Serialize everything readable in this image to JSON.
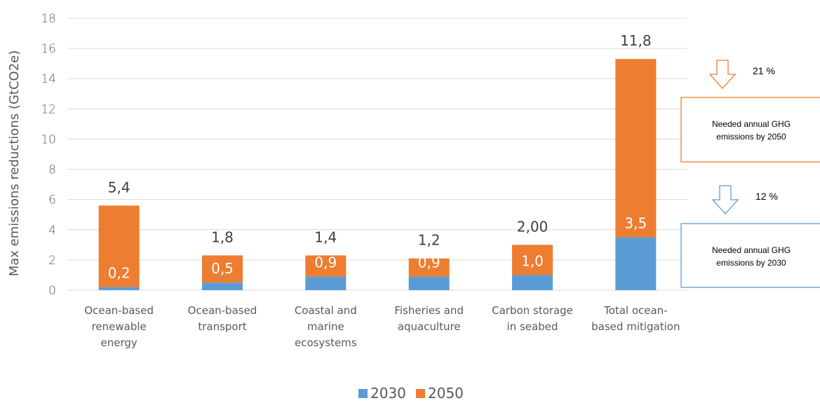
{
  "chart_data": {
    "type": "bar",
    "stacked": true,
    "ylabel": "Max emissions reductions (GtCO2e)",
    "ylim": [
      0,
      18
    ],
    "yticks": [
      0,
      2,
      4,
      6,
      8,
      10,
      12,
      14,
      16,
      18
    ],
    "grid": true,
    "legend_position": "bottom",
    "categories": [
      [
        "Ocean-based",
        "renewable",
        "energy"
      ],
      [
        "Ocean-based",
        "transport"
      ],
      [
        "Coastal and",
        "marine",
        "ecosystems"
      ],
      [
        "Fisheries and",
        "aquaculture"
      ],
      [
        "Carbon storage",
        "in seabed"
      ],
      [
        "Total ocean-",
        "based mitigation"
      ]
    ],
    "series": [
      {
        "name": "2030",
        "color": "#5B9BD5",
        "values": [
          0.2,
          0.5,
          0.9,
          0.9,
          1.0,
          3.5
        ],
        "labels": [
          "0,2",
          "0,5",
          "0,9",
          "0,9",
          "1,0",
          "3,5"
        ]
      },
      {
        "name": "2050",
        "color": "#ED7D31",
        "values": [
          5.4,
          1.8,
          1.4,
          1.2,
          2.0,
          11.8
        ],
        "labels": [
          "5,4",
          "1,8",
          "1,4",
          "1,2",
          "2,00",
          "11,8"
        ]
      }
    ],
    "annotations": [
      {
        "percent": "21 %",
        "box_lines": [
          "Needed annual  GHG",
          "emissions by 2050"
        ],
        "color": "#ED7D31"
      },
      {
        "percent": "12 %",
        "box_lines": [
          "Needed annual  GHG",
          "emissions by 2030"
        ],
        "color": "#5B9BD5"
      }
    ]
  }
}
